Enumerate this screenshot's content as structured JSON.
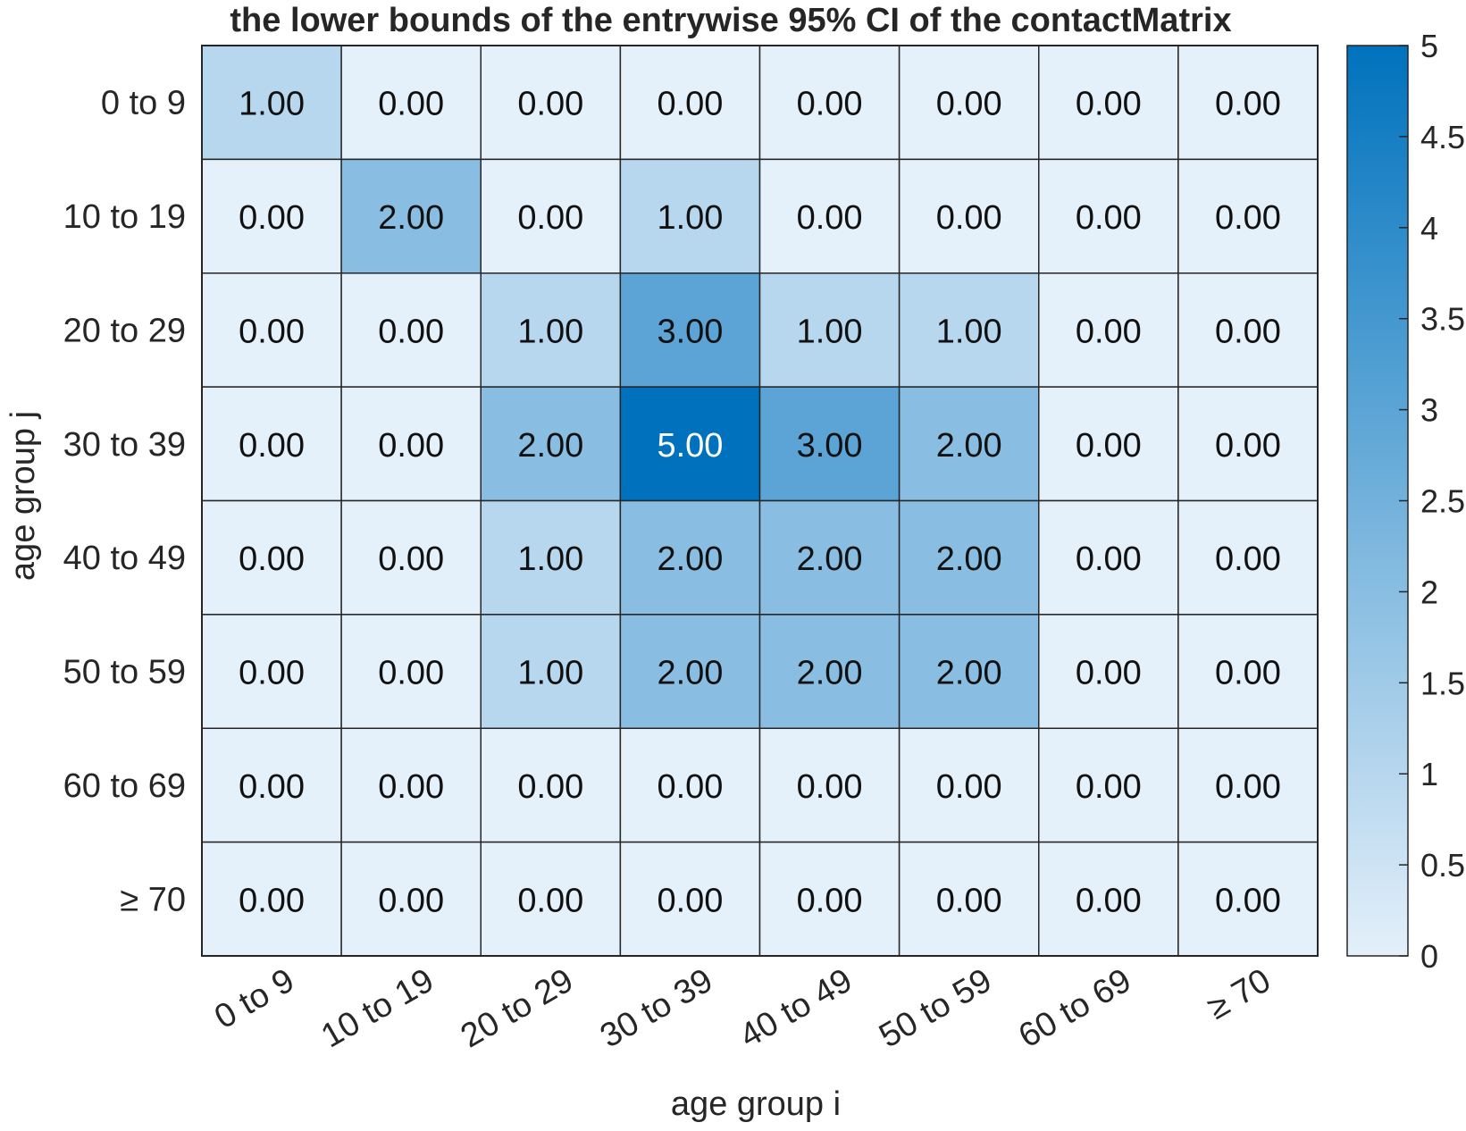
{
  "chart_data": {
    "type": "heatmap",
    "title": "the lower bounds of the entrywise 95% CI of the contactMatrix",
    "xlabel": "age group i",
    "ylabel": "age group j",
    "x_categories": [
      "0 to 9",
      "10 to 19",
      "20 to 29",
      "30 to 39",
      "40 to 49",
      "50 to 59",
      "60 to 69",
      "≥ 70"
    ],
    "y_categories": [
      "0 to 9",
      "10 to 19",
      "20 to 29",
      "30 to 39",
      "40 to 49",
      "50 to 59",
      "60 to 69",
      "≥ 70"
    ],
    "values": [
      [
        1,
        0,
        0,
        0,
        0,
        0,
        0,
        0
      ],
      [
        0,
        2,
        0,
        1,
        0,
        0,
        0,
        0
      ],
      [
        0,
        0,
        1,
        3,
        1,
        1,
        0,
        0
      ],
      [
        0,
        0,
        2,
        5,
        3,
        2,
        0,
        0
      ],
      [
        0,
        0,
        1,
        2,
        2,
        2,
        0,
        0
      ],
      [
        0,
        0,
        1,
        2,
        2,
        2,
        0,
        0
      ],
      [
        0,
        0,
        0,
        0,
        0,
        0,
        0,
        0
      ],
      [
        0,
        0,
        0,
        0,
        0,
        0,
        0,
        0
      ]
    ],
    "value_format": "0.00",
    "colorbar": {
      "range": [
        0,
        5
      ],
      "ticks": [
        0,
        0.5,
        1,
        1.5,
        2,
        2.5,
        3,
        3.5,
        4,
        4.5,
        5
      ],
      "tick_labels": [
        "0",
        "0.5",
        "1",
        "1.5",
        "2",
        "2.5",
        "3",
        "3.5",
        "4",
        "4.5",
        "5"
      ],
      "low_color": "#e4f0fa",
      "high_color": "#0072bd"
    },
    "grid": true
  }
}
